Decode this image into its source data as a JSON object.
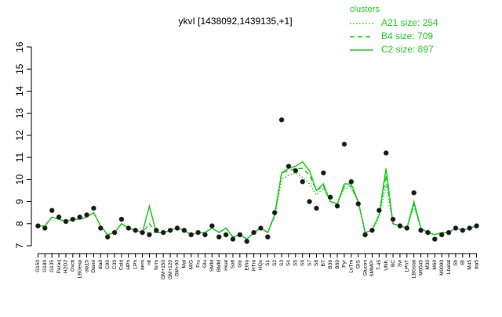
{
  "chart_data": {
    "type": "line",
    "title": "ykvI [1438092,1439135,+1]",
    "legend_title": "clusters",
    "legend_position": "top-right",
    "ylim": [
      7,
      16
    ],
    "yticks": [
      7,
      8,
      9,
      10,
      11,
      12,
      13,
      14,
      15,
      16
    ],
    "categories": [
      "G150",
      "G180",
      "G135",
      "Paraq",
      "H2O2",
      "Oxctl",
      "LBGexp",
      "dia15",
      "Diami",
      "dia0",
      "C90",
      "C30",
      "Cold",
      "HPh",
      "LPh",
      "aero",
      "nit",
      "ferm",
      "GM+150",
      "GM+120",
      "GM+90",
      "Mal",
      "M/G",
      "Fru",
      "Glu",
      "SMM",
      "BMM",
      "Heat",
      "Salt",
      "Gly",
      "Etha",
      "HTm",
      "HQs",
      "S1",
      "S2",
      "S3",
      "S4",
      "S5",
      "S6",
      "S7",
      "S8",
      "BT",
      "B36",
      "B60",
      "Pyr",
      "LoTm",
      "GIS",
      "Glucon",
      "SMMPr",
      "T-45",
      "UNK",
      "BC",
      "Sw",
      "LPhT",
      "LBGstat",
      "M0045",
      "M30",
      "M60",
      "M0090",
      "Lbatat",
      "Sb",
      "BI",
      "M45",
      "dia5"
    ],
    "points": {
      "color": "#1a1a1a",
      "values": [
        7.9,
        7.8,
        8.6,
        8.3,
        8.1,
        8.2,
        8.3,
        8.4,
        8.7,
        7.8,
        7.4,
        7.6,
        8.2,
        7.8,
        7.7,
        7.6,
        7.5,
        7.7,
        7.6,
        7.7,
        7.8,
        7.7,
        7.5,
        7.6,
        7.5,
        7.9,
        7.4,
        7.5,
        7.3,
        7.5,
        7.2,
        7.6,
        7.8,
        7.4,
        8.5,
        12.7,
        10.6,
        10.4,
        9.9,
        9.0,
        8.7,
        10.3,
        9.2,
        8.8,
        11.6,
        9.9,
        8.9,
        7.5,
        7.7,
        8.6,
        11.2,
        8.2,
        7.9,
        7.8,
        9.4,
        7.7,
        7.6,
        7.3,
        7.5,
        7.6,
        7.8,
        7.7,
        7.8,
        7.9
      ]
    },
    "series": [
      {
        "name": "A21 size: 254",
        "color": "#22cc22",
        "dash": "dotted",
        "values": [
          7.9,
          7.9,
          8.3,
          8.2,
          8.1,
          8.2,
          8.2,
          8.3,
          8.5,
          7.9,
          7.5,
          7.6,
          8.0,
          7.8,
          7.7,
          7.6,
          7.6,
          7.6,
          7.6,
          7.7,
          7.8,
          7.7,
          7.5,
          7.6,
          7.6,
          7.8,
          7.6,
          7.8,
          7.4,
          7.5,
          7.3,
          7.6,
          7.8,
          7.6,
          8.3,
          10.0,
          10.2,
          10.3,
          10.1,
          9.8,
          9.3,
          9.6,
          9.0,
          8.9,
          9.6,
          9.6,
          9.0,
          7.6,
          7.7,
          8.3,
          9.8,
          8.0,
          7.9,
          7.8,
          8.8,
          7.8,
          7.6,
          7.5,
          7.6,
          7.6,
          7.8,
          7.7,
          7.8,
          7.9
        ]
      },
      {
        "name": "B4 size: 709",
        "color": "#22cc22",
        "dash": "dashed",
        "values": [
          7.9,
          7.9,
          8.3,
          8.2,
          8.1,
          8.2,
          8.2,
          8.3,
          8.5,
          7.9,
          7.5,
          7.6,
          8.0,
          7.8,
          7.7,
          7.6,
          8.0,
          7.6,
          7.6,
          7.7,
          7.8,
          7.7,
          7.5,
          7.6,
          7.6,
          7.8,
          7.6,
          7.8,
          7.4,
          7.5,
          7.3,
          7.6,
          7.8,
          7.6,
          8.4,
          10.3,
          10.4,
          10.5,
          10.5,
          10.2,
          9.5,
          9.7,
          9.0,
          8.9,
          9.7,
          9.7,
          9.0,
          7.6,
          7.7,
          8.4,
          10.2,
          8.0,
          7.9,
          7.8,
          8.9,
          7.8,
          7.6,
          7.5,
          7.6,
          7.6,
          7.8,
          7.7,
          7.8,
          7.9
        ]
      },
      {
        "name": "C2 size: 897",
        "color": "#22cc22",
        "dash": "solid",
        "values": [
          7.9,
          7.9,
          8.3,
          8.2,
          8.1,
          8.2,
          8.2,
          8.3,
          8.5,
          7.9,
          7.5,
          7.6,
          8.0,
          7.8,
          7.7,
          7.6,
          8.8,
          7.6,
          7.6,
          7.7,
          7.8,
          7.7,
          7.5,
          7.6,
          7.6,
          7.8,
          7.6,
          7.8,
          7.4,
          7.5,
          7.3,
          7.6,
          7.8,
          7.6,
          8.4,
          10.3,
          10.5,
          10.6,
          10.8,
          10.4,
          9.5,
          9.8,
          9.0,
          8.9,
          9.8,
          9.8,
          9.0,
          7.6,
          7.7,
          8.4,
          10.5,
          8.0,
          7.9,
          7.8,
          9.0,
          7.8,
          7.6,
          7.5,
          7.6,
          7.6,
          7.8,
          7.7,
          7.8,
          7.9
        ]
      }
    ]
  }
}
